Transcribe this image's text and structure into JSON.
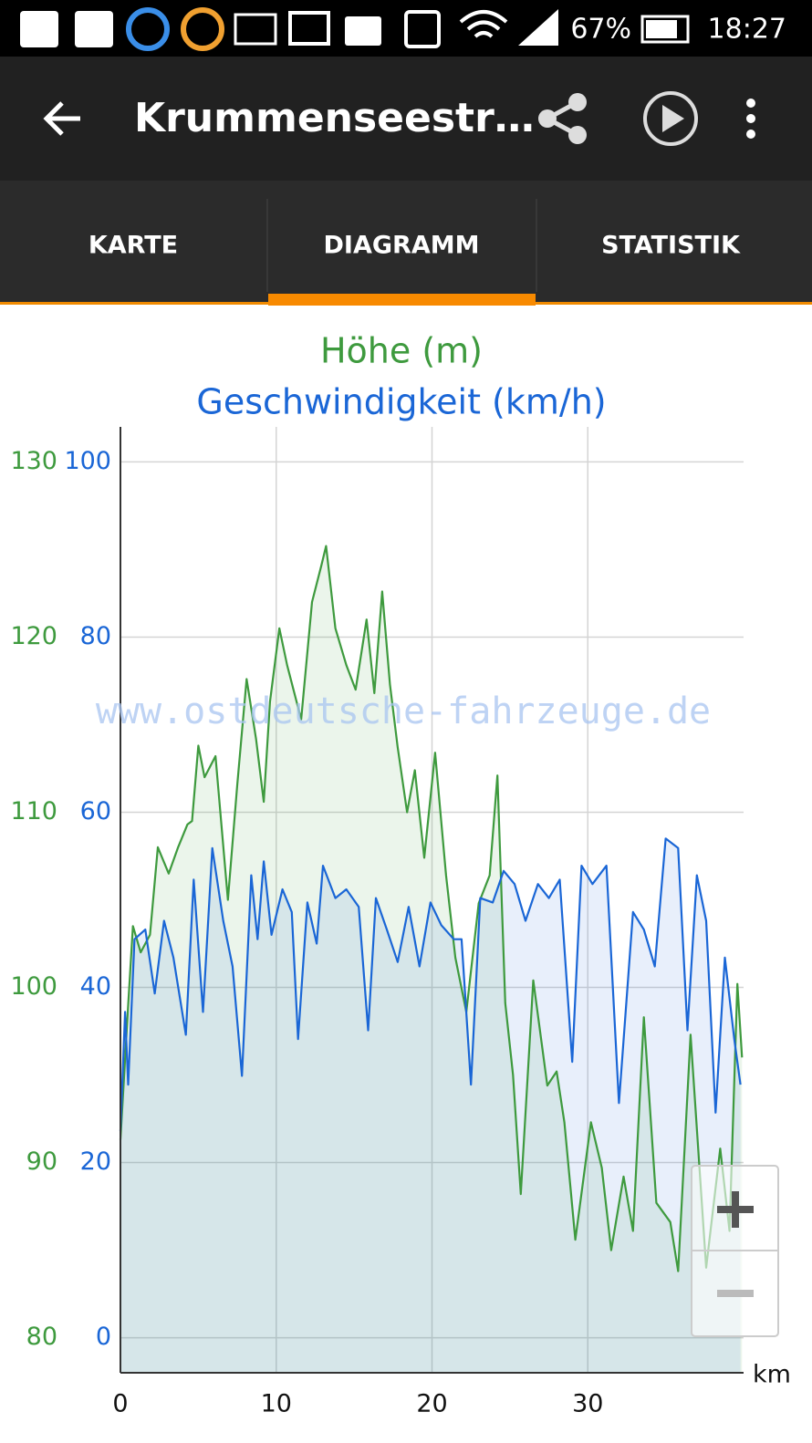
{
  "status_bar": {
    "battery": "67%",
    "time": "18:27"
  },
  "toolbar": {
    "title": "Krummenseestr…"
  },
  "tabs": [
    "KARTE",
    "DIAGRAMM",
    "STATISTIK"
  ],
  "chart_data": {
    "type": "line",
    "watermark": "www.ostdeutsche-fahrzeuge.de",
    "x_label": "km",
    "xlim": [
      0,
      40
    ],
    "xticks": [
      0,
      10,
      20,
      30
    ],
    "ylim": [
      78,
      132
    ],
    "yticks": [
      80,
      90,
      100,
      110,
      120,
      130
    ],
    "y2lim": [
      -4,
      104
    ],
    "y2ticks": [
      0,
      20,
      40,
      60,
      80,
      100
    ],
    "grid": true,
    "series": [
      {
        "name": "Höhe (m)",
        "color": "#3e9a3e",
        "axis": "y",
        "x": [
          0,
          0.5,
          0.8,
          1.3,
          1.9,
          2.4,
          3.1,
          3.7,
          4.3,
          4.6,
          5.0,
          5.4,
          6.1,
          6.9,
          7.5,
          8.1,
          8.7,
          9.2,
          9.6,
          10.2,
          10.7,
          11.6,
          12.3,
          12.9,
          13.2,
          13.8,
          14.5,
          15.1,
          15.8,
          16.3,
          16.8,
          17.3,
          17.8,
          18.4,
          18.9,
          19.5,
          20.2,
          20.9,
          21.5,
          22.2,
          23.0,
          23.7,
          24.2,
          24.7,
          25.2,
          25.7,
          26.5,
          27.4,
          28.0,
          28.5,
          29.2,
          30.2,
          30.9,
          31.5,
          32.3,
          32.9,
          33.6,
          34.4,
          35.3,
          35.8,
          36.6,
          37.6,
          38.5,
          39.1,
          39.6,
          39.9
        ],
        "values": [
          91.3,
          99,
          103.5,
          102,
          103,
          108,
          106.5,
          108,
          109.3,
          109.5,
          113.8,
          112,
          113.2,
          105,
          111.6,
          117.6,
          114.2,
          110.6,
          116.3,
          120.5,
          118.4,
          115.3,
          122,
          124.1,
          125.2,
          120.5,
          118.4,
          117,
          121,
          116.8,
          122.6,
          117.3,
          113.7,
          110,
          112.4,
          107.4,
          113.4,
          106.4,
          101.7,
          98.6,
          104.8,
          106.4,
          112.1,
          99.1,
          95,
          88.2,
          100.4,
          94.4,
          95.2,
          92.3,
          85.6,
          92.3,
          89.7,
          85,
          89.2,
          86.1,
          98.3,
          87.7,
          86.6,
          83.8,
          97.3,
          84,
          90.8,
          86.1,
          100.2,
          96
        ]
      },
      {
        "name": "Geschwindigkeit (km/h)",
        "color": "#1a66d6",
        "axis": "y2",
        "x": [
          0,
          0.3,
          0.5,
          0.9,
          1.6,
          2.2,
          2.8,
          3.4,
          4.2,
          4.7,
          5.3,
          5.9,
          6.6,
          7.2,
          7.8,
          8.4,
          8.8,
          9.2,
          9.7,
          10.4,
          11.0,
          11.4,
          12.0,
          12.6,
          13.0,
          13.8,
          14.5,
          15.3,
          15.9,
          16.4,
          17.1,
          17.8,
          18.5,
          19.2,
          19.9,
          20.6,
          21.4,
          21.9,
          22.5,
          23.1,
          23.9,
          24.6,
          25.3,
          26.0,
          26.8,
          27.5,
          28.2,
          29.0,
          29.6,
          30.3,
          31.2,
          32.0,
          32.9,
          33.6,
          34.3,
          35.0,
          35.8,
          36.4,
          37.0,
          37.6,
          38.2,
          38.8,
          39.4,
          39.8
        ],
        "values": [
          23.6,
          37.2,
          28.9,
          45.5,
          46.6,
          39.3,
          47.6,
          43.4,
          34.6,
          52.3,
          37.2,
          55.9,
          47.6,
          42.4,
          29.9,
          52.8,
          45.5,
          54.4,
          46,
          51.2,
          48.6,
          34.1,
          49.7,
          45,
          53.9,
          50.2,
          51.2,
          49.2,
          35.1,
          50.2,
          46.6,
          42.9,
          49.2,
          42.4,
          49.7,
          47.1,
          45.5,
          45.5,
          28.9,
          50.2,
          49.7,
          53.3,
          51.8,
          47.6,
          51.8,
          50.2,
          52.3,
          31.5,
          53.9,
          51.8,
          53.9,
          26.8,
          48.6,
          46.6,
          42.4,
          57,
          55.9,
          35.1,
          52.8,
          47.6,
          25.7,
          43.4,
          34.1,
          28.9
        ]
      }
    ]
  }
}
